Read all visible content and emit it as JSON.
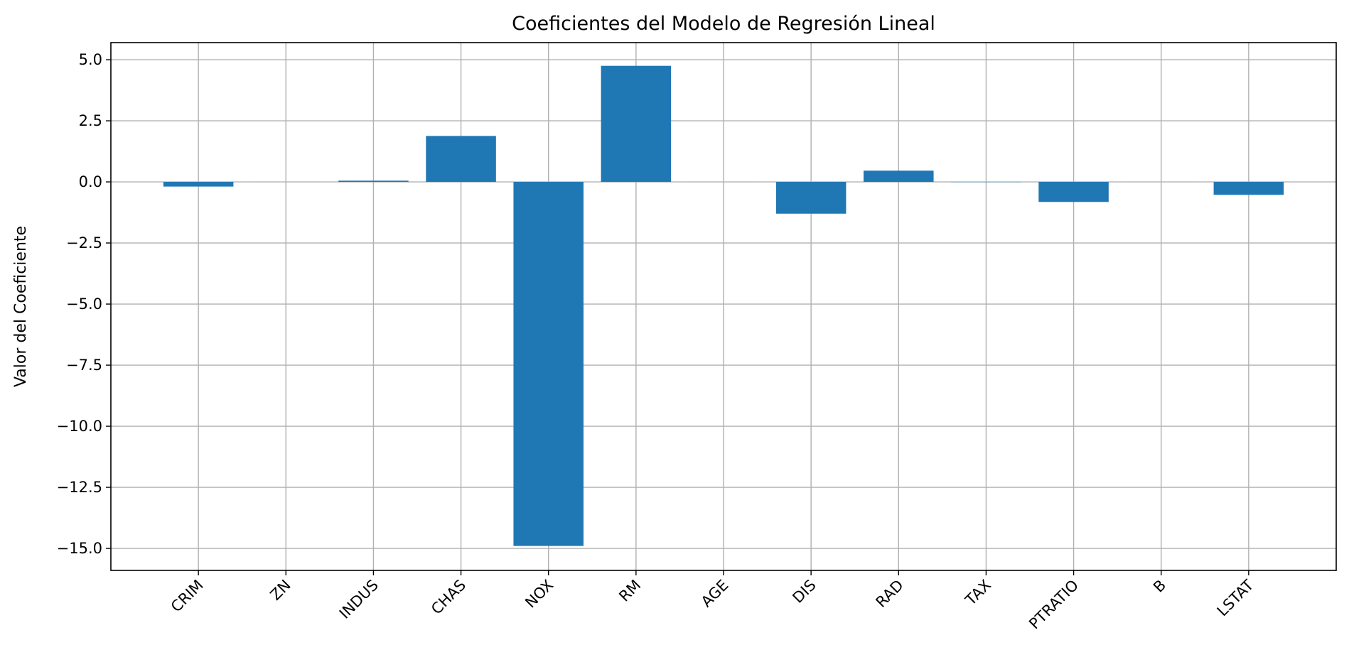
{
  "chart_data": {
    "type": "bar",
    "title": "Coeficientes del Modelo de Regresión Lineal",
    "xlabel": "",
    "ylabel": "Valor del Coeficiente",
    "categories": [
      "CRIM",
      "ZN",
      "INDUS",
      "CHAS",
      "NOX",
      "RM",
      "AGE",
      "DIS",
      "RAD",
      "TAX",
      "PTRATIO",
      "B",
      "LSTAT"
    ],
    "values": [
      -0.19,
      0.0,
      0.05,
      1.88,
      -14.9,
      4.75,
      0.0,
      -1.3,
      0.46,
      -0.01,
      -0.82,
      0.0,
      -0.53
    ],
    "ylim": [
      -15.9,
      5.7
    ],
    "yticks": [
      5.0,
      2.5,
      0.0,
      -2.5,
      -5.0,
      -7.5,
      -10.0,
      -12.5,
      -15.0
    ],
    "ytick_labels": [
      "5.0",
      "2.5",
      "0.0",
      "−2.5",
      "−5.0",
      "−7.5",
      "−10.0",
      "−12.5",
      "−15.0"
    ],
    "grid": true,
    "bar_color": "#1f77b4",
    "grid_color": "#b0b0b0"
  }
}
